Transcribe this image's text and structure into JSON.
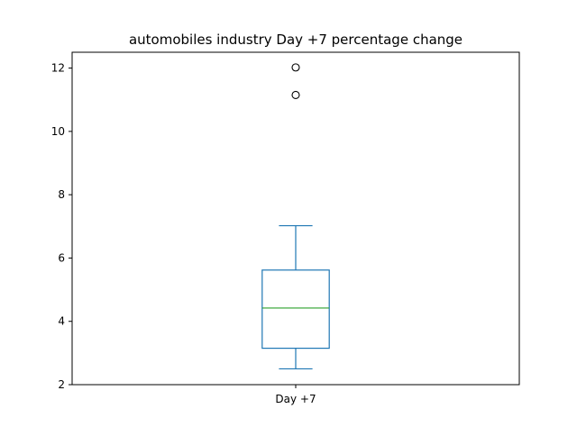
{
  "chart_data": {
    "type": "box",
    "title": "automobiles industry Day +7 percentage change",
    "xlabel": "",
    "ylabel": "",
    "categories": [
      "Day +7"
    ],
    "ylim": [
      2.0,
      12.5
    ],
    "yticks": [
      2,
      4,
      6,
      8,
      10,
      12
    ],
    "grid": false,
    "boxes": [
      {
        "label": "Day +7",
        "whisker_low": 2.5,
        "q1": 3.15,
        "median": 4.42,
        "q3": 5.62,
        "whisker_high": 7.02,
        "outliers": [
          11.15,
          12.02
        ]
      }
    ]
  },
  "colors": {
    "box": "#1f77b4",
    "median": "#2ca02c",
    "outlier_edge": "#000000",
    "axes": "#000000",
    "text": "#000000"
  }
}
